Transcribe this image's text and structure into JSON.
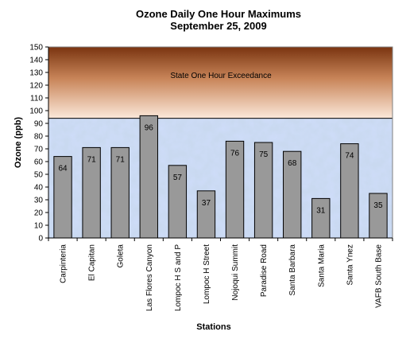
{
  "chart_data": {
    "type": "bar",
    "title": "Ozone Daily One Hour Maximums",
    "subtitle": "September 25, 2009",
    "xlabel": "Stations",
    "ylabel": "Ozone (ppb)",
    "ylim": [
      0,
      150
    ],
    "ytick_step": 10,
    "grid": false,
    "legend": "none",
    "categories": [
      "Carpinteria",
      "El Capitan",
      "Goleta",
      "Las Flores Canyon",
      "Lompoc H S and P",
      "Lompoc H Street",
      "Nojoqui Summit",
      "Paradise Road",
      "Santa Barbara",
      "Santa Maria",
      "Santa Ynez",
      "VAFB South Base"
    ],
    "values": [
      64,
      71,
      71,
      96,
      57,
      37,
      76,
      75,
      68,
      31,
      74,
      35
    ],
    "exceedance": {
      "label": "State One Hour Exceedance",
      "threshold": 94,
      "max": 150
    },
    "colors": {
      "bar": "#999999",
      "bar_edge": "#000000",
      "exceed_top": "#7a3410",
      "exceed_bottom": "#fbe8da",
      "normal_bg": "#c9d9f0"
    }
  }
}
